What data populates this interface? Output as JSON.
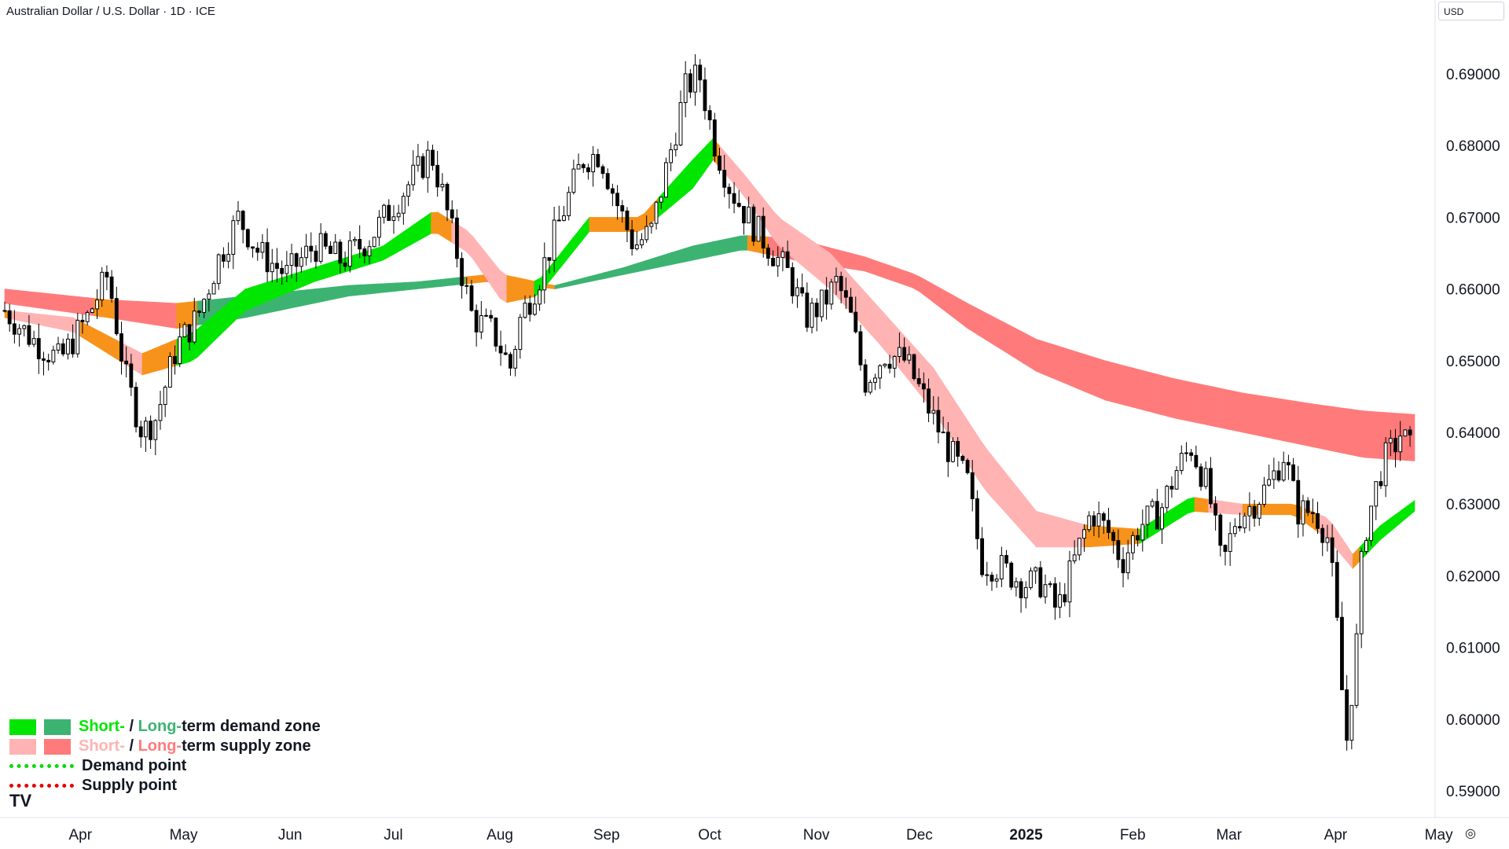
{
  "header": {
    "title": "Australian Dollar / U.S. Dollar · 1D · ICE"
  },
  "currency_selector": {
    "label": "USD"
  },
  "settings": {
    "icon": "settings-icon"
  },
  "brand": {
    "logo_text": "TV"
  },
  "legend": {
    "demand_zone": {
      "short": "Short-",
      "sep": " / ",
      "long": "Long-",
      "rest": "term demand zone"
    },
    "supply_zone": {
      "short": "Short-",
      "sep": " / ",
      "long": "Long-",
      "rest": "term supply zone"
    },
    "demand_point": "Demand point",
    "supply_point": "Supply point"
  },
  "colors": {
    "short_demand": "#00e600",
    "long_demand": "#3cb371",
    "short_supply": "#ffb3b3",
    "long_supply": "#ff7b7b",
    "neutral": "#f7931a",
    "demand_point": "#00dd00",
    "supply_point": "#e60000",
    "candle_up": "#ffffff",
    "candle_down": "#000000"
  },
  "chart_data": {
    "type": "candlestick",
    "symbol": "AUDUSD",
    "interval": "1D",
    "exchange": "ICE",
    "y_axis": {
      "min": 0.585,
      "max": 0.695,
      "ticks": [
        "0.69000",
        "0.68000",
        "0.67000",
        "0.66000",
        "0.65000",
        "0.64000",
        "0.63000",
        "0.62000",
        "0.61000",
        "0.60000",
        "0.59000"
      ]
    },
    "x_axis": {
      "labels": [
        {
          "text": "Apr",
          "day": 22
        },
        {
          "text": "May",
          "day": 52
        },
        {
          "text": "Jun",
          "day": 83
        },
        {
          "text": "Jul",
          "day": 113
        },
        {
          "text": "Aug",
          "day": 144
        },
        {
          "text": "Sep",
          "day": 175
        },
        {
          "text": "Oct",
          "day": 205
        },
        {
          "text": "Nov",
          "day": 236
        },
        {
          "text": "Dec",
          "day": 266
        },
        {
          "text": "2025",
          "day": 297,
          "bold": true
        },
        {
          "text": "Feb",
          "day": 328
        },
        {
          "text": "Mar",
          "day": 356
        },
        {
          "text": "Apr",
          "day": 387
        },
        {
          "text": "May",
          "day": 417
        }
      ]
    },
    "price_path": [
      {
        "day": 0,
        "price": 0.657
      },
      {
        "day": 8,
        "price": 0.653
      },
      {
        "day": 16,
        "price": 0.65
      },
      {
        "day": 24,
        "price": 0.656
      },
      {
        "day": 30,
        "price": 0.662
      },
      {
        "day": 35,
        "price": 0.648
      },
      {
        "day": 40,
        "price": 0.64
      },
      {
        "day": 44,
        "price": 0.642
      },
      {
        "day": 50,
        "price": 0.652
      },
      {
        "day": 56,
        "price": 0.656
      },
      {
        "day": 62,
        "price": 0.664
      },
      {
        "day": 68,
        "price": 0.67
      },
      {
        "day": 74,
        "price": 0.665
      },
      {
        "day": 82,
        "price": 0.662
      },
      {
        "day": 90,
        "price": 0.666
      },
      {
        "day": 98,
        "price": 0.664
      },
      {
        "day": 106,
        "price": 0.667
      },
      {
        "day": 112,
        "price": 0.671
      },
      {
        "day": 118,
        "price": 0.675
      },
      {
        "day": 124,
        "price": 0.679
      },
      {
        "day": 128,
        "price": 0.672
      },
      {
        "day": 132,
        "price": 0.664
      },
      {
        "day": 136,
        "price": 0.656
      },
      {
        "day": 142,
        "price": 0.654
      },
      {
        "day": 147,
        "price": 0.649
      },
      {
        "day": 150,
        "price": 0.656
      },
      {
        "day": 155,
        "price": 0.661
      },
      {
        "day": 161,
        "price": 0.669
      },
      {
        "day": 168,
        "price": 0.678
      },
      {
        "day": 173,
        "price": 0.679
      },
      {
        "day": 178,
        "price": 0.672
      },
      {
        "day": 183,
        "price": 0.666
      },
      {
        "day": 188,
        "price": 0.668
      },
      {
        "day": 193,
        "price": 0.678
      },
      {
        "day": 198,
        "price": 0.688
      },
      {
        "day": 202,
        "price": 0.69
      },
      {
        "day": 206,
        "price": 0.681
      },
      {
        "day": 211,
        "price": 0.674
      },
      {
        "day": 216,
        "price": 0.67
      },
      {
        "day": 222,
        "price": 0.666
      },
      {
        "day": 228,
        "price": 0.662
      },
      {
        "day": 233,
        "price": 0.656
      },
      {
        "day": 238,
        "price": 0.658
      },
      {
        "day": 242,
        "price": 0.661
      },
      {
        "day": 246,
        "price": 0.656
      },
      {
        "day": 250,
        "price": 0.647
      },
      {
        "day": 256,
        "price": 0.651
      },
      {
        "day": 262,
        "price": 0.65
      },
      {
        "day": 268,
        "price": 0.644
      },
      {
        "day": 274,
        "price": 0.638
      },
      {
        "day": 280,
        "price": 0.633
      },
      {
        "day": 284,
        "price": 0.622
      },
      {
        "day": 290,
        "price": 0.621
      },
      {
        "day": 296,
        "price": 0.619
      },
      {
        "day": 302,
        "price": 0.619
      },
      {
        "day": 306,
        "price": 0.615
      },
      {
        "day": 311,
        "price": 0.622
      },
      {
        "day": 316,
        "price": 0.629
      },
      {
        "day": 321,
        "price": 0.626
      },
      {
        "day": 325,
        "price": 0.622
      },
      {
        "day": 330,
        "price": 0.627
      },
      {
        "day": 336,
        "price": 0.629
      },
      {
        "day": 341,
        "price": 0.635
      },
      {
        "day": 345,
        "price": 0.638
      },
      {
        "day": 350,
        "price": 0.632
      },
      {
        "day": 354,
        "price": 0.621
      },
      {
        "day": 358,
        "price": 0.628
      },
      {
        "day": 363,
        "price": 0.63
      },
      {
        "day": 368,
        "price": 0.633
      },
      {
        "day": 372,
        "price": 0.637
      },
      {
        "day": 376,
        "price": 0.629
      },
      {
        "day": 381,
        "price": 0.629
      },
      {
        "day": 385,
        "price": 0.625
      },
      {
        "day": 388,
        "price": 0.61
      },
      {
        "day": 390,
        "price": 0.596
      },
      {
        "day": 393,
        "price": 0.61
      },
      {
        "day": 395,
        "price": 0.625
      },
      {
        "day": 398,
        "price": 0.631
      },
      {
        "day": 401,
        "price": 0.636
      },
      {
        "day": 404,
        "price": 0.638
      },
      {
        "day": 406,
        "price": 0.64
      },
      {
        "day": 408,
        "price": 0.638
      },
      {
        "day": 410,
        "price": 0.637
      }
    ],
    "zones": [
      {
        "name": "long-term band",
        "points": [
          [
            0,
            0.66,
            0.658
          ],
          [
            30,
            0.6585,
            0.656
          ],
          [
            50,
            0.658,
            0.6545
          ],
          [
            70,
            0.659,
            0.656
          ],
          [
            100,
            0.6605,
            0.659
          ],
          [
            120,
            0.661,
            0.66
          ],
          [
            140,
            0.662,
            0.661
          ],
          [
            160,
            0.6605,
            0.66
          ],
          [
            180,
            0.663,
            0.662
          ],
          [
            200,
            0.666,
            0.664
          ],
          [
            215,
            0.6675,
            0.6655
          ],
          [
            230,
            0.667,
            0.664
          ],
          [
            250,
            0.6645,
            0.6625
          ],
          [
            265,
            0.662,
            0.66
          ],
          [
            280,
            0.658,
            0.6545
          ],
          [
            300,
            0.653,
            0.6485
          ],
          [
            320,
            0.65,
            0.6445
          ],
          [
            340,
            0.6475,
            0.642
          ],
          [
            360,
            0.6455,
            0.64
          ],
          [
            380,
            0.644,
            0.638
          ],
          [
            395,
            0.643,
            0.6365
          ],
          [
            410,
            0.6425,
            0.636
          ]
        ]
      },
      {
        "name": "short-term band",
        "points": [
          [
            0,
            0.657,
            0.656
          ],
          [
            20,
            0.656,
            0.654
          ],
          [
            40,
            0.651,
            0.648
          ],
          [
            55,
            0.654,
            0.65
          ],
          [
            70,
            0.66,
            0.657
          ],
          [
            90,
            0.663,
            0.661
          ],
          [
            110,
            0.666,
            0.664
          ],
          [
            125,
            0.671,
            0.668
          ],
          [
            135,
            0.668,
            0.665
          ],
          [
            145,
            0.662,
            0.658
          ],
          [
            155,
            0.661,
            0.659
          ],
          [
            170,
            0.67,
            0.668
          ],
          [
            185,
            0.67,
            0.668
          ],
          [
            200,
            0.678,
            0.674
          ],
          [
            206,
            0.681,
            0.678
          ],
          [
            215,
            0.676,
            0.673
          ],
          [
            225,
            0.67,
            0.666
          ],
          [
            240,
            0.665,
            0.66
          ],
          [
            255,
            0.657,
            0.652
          ],
          [
            270,
            0.649,
            0.643
          ],
          [
            285,
            0.638,
            0.632
          ],
          [
            300,
            0.629,
            0.624
          ],
          [
            315,
            0.627,
            0.624
          ],
          [
            330,
            0.6265,
            0.6245
          ],
          [
            345,
            0.631,
            0.629
          ],
          [
            360,
            0.63,
            0.6285
          ],
          [
            375,
            0.63,
            0.6285
          ],
          [
            385,
            0.628,
            0.625
          ],
          [
            392,
            0.623,
            0.621
          ],
          [
            400,
            0.627,
            0.625
          ],
          [
            410,
            0.6305,
            0.629
          ]
        ]
      }
    ]
  }
}
